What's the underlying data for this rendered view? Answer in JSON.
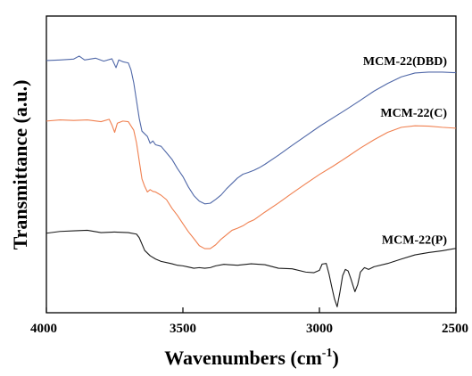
{
  "chart_data": {
    "type": "line",
    "title": "",
    "xlabel": "Wavenumbers (cm",
    "xlabel_sup": "-1",
    "xlabel_close": ")",
    "ylabel": "Transmittance (a.u.)",
    "xlim": [
      4000,
      2500
    ],
    "x_reversed": true,
    "yticks_shown": false,
    "x_ticks": [
      4000,
      3500,
      3000,
      2500
    ],
    "ylim": [
      0,
      100
    ],
    "grid": false,
    "legend": "inline labels",
    "series": [
      {
        "name": "MCM-22(DBD)",
        "color": "#5068a8",
        "points": [
          [
            4000,
            85
          ],
          [
            3950,
            85.2
          ],
          [
            3900,
            85.5
          ],
          [
            3880,
            86.5
          ],
          [
            3860,
            85.2
          ],
          [
            3820,
            85.8
          ],
          [
            3790,
            84.8
          ],
          [
            3760,
            85.6
          ],
          [
            3745,
            82.6
          ],
          [
            3735,
            85.2
          ],
          [
            3720,
            84.6
          ],
          [
            3700,
            84.2
          ],
          [
            3690,
            81.8
          ],
          [
            3680,
            77.5
          ],
          [
            3670,
            71.5
          ],
          [
            3660,
            65.5
          ],
          [
            3650,
            61.2
          ],
          [
            3640,
            60.3
          ],
          [
            3630,
            59.4
          ],
          [
            3620,
            57.1
          ],
          [
            3610,
            57.9
          ],
          [
            3600,
            56.6
          ],
          [
            3580,
            56.1
          ],
          [
            3560,
            53.9
          ],
          [
            3540,
            51.7
          ],
          [
            3520,
            48.6
          ],
          [
            3500,
            45.9
          ],
          [
            3480,
            42.4
          ],
          [
            3460,
            39.5
          ],
          [
            3440,
            37.6
          ],
          [
            3420,
            36.7
          ],
          [
            3400,
            36.9
          ],
          [
            3380,
            38.2
          ],
          [
            3360,
            39.7
          ],
          [
            3340,
            41.8
          ],
          [
            3320,
            43.6
          ],
          [
            3300,
            45.4
          ],
          [
            3280,
            46.7
          ],
          [
            3260,
            47.3
          ],
          [
            3240,
            48.0
          ],
          [
            3220,
            48.9
          ],
          [
            3200,
            50.0
          ],
          [
            3150,
            53.1
          ],
          [
            3100,
            56.4
          ],
          [
            3050,
            59.6
          ],
          [
            3000,
            62.8
          ],
          [
            2950,
            65.7
          ],
          [
            2900,
            68.6
          ],
          [
            2850,
            71.6
          ],
          [
            2800,
            74.7
          ],
          [
            2750,
            77.3
          ],
          [
            2700,
            79.5
          ],
          [
            2650,
            80.8
          ],
          [
            2600,
            81.1
          ],
          [
            2550,
            81.1
          ],
          [
            2500,
            80.9
          ]
        ]
      },
      {
        "name": "MCM-22(C)",
        "color": "#f08050",
        "points": [
          [
            4000,
            64.6
          ],
          [
            3950,
            65.0
          ],
          [
            3900,
            64.8
          ],
          [
            3850,
            65.0
          ],
          [
            3800,
            64.4
          ],
          [
            3770,
            65.2
          ],
          [
            3760,
            63.3
          ],
          [
            3750,
            60.8
          ],
          [
            3740,
            63.9
          ],
          [
            3720,
            64.6
          ],
          [
            3700,
            64.4
          ],
          [
            3680,
            61.5
          ],
          [
            3670,
            57.3
          ],
          [
            3660,
            51.2
          ],
          [
            3650,
            45.1
          ],
          [
            3640,
            42.6
          ],
          [
            3630,
            40.7
          ],
          [
            3620,
            41.5
          ],
          [
            3610,
            40.9
          ],
          [
            3600,
            40.7
          ],
          [
            3580,
            39.6
          ],
          [
            3560,
            38.1
          ],
          [
            3540,
            35.2
          ],
          [
            3520,
            32.8
          ],
          [
            3500,
            30.0
          ],
          [
            3480,
            27.3
          ],
          [
            3460,
            25.0
          ],
          [
            3440,
            22.6
          ],
          [
            3420,
            21.6
          ],
          [
            3400,
            21.6
          ],
          [
            3380,
            22.9
          ],
          [
            3360,
            24.8
          ],
          [
            3340,
            26.3
          ],
          [
            3320,
            27.8
          ],
          [
            3300,
            28.5
          ],
          [
            3280,
            29.3
          ],
          [
            3260,
            30.5
          ],
          [
            3240,
            31.3
          ],
          [
            3200,
            33.9
          ],
          [
            3150,
            37.0
          ],
          [
            3100,
            40.3
          ],
          [
            3050,
            43.5
          ],
          [
            3000,
            46.6
          ],
          [
            2950,
            49.4
          ],
          [
            2900,
            52.4
          ],
          [
            2850,
            55.5
          ],
          [
            2800,
            58.3
          ],
          [
            2750,
            60.8
          ],
          [
            2700,
            62.5
          ],
          [
            2650,
            63.0
          ],
          [
            2600,
            62.9
          ],
          [
            2550,
            62.5
          ],
          [
            2500,
            62.2
          ]
        ]
      },
      {
        "name": "MCM-22(P)",
        "color": "#1a1a1a",
        "points": [
          [
            4000,
            26.8
          ],
          [
            3950,
            27.4
          ],
          [
            3900,
            27.6
          ],
          [
            3850,
            27.8
          ],
          [
            3800,
            27.0
          ],
          [
            3750,
            27.2
          ],
          [
            3700,
            27.0
          ],
          [
            3670,
            26.5
          ],
          [
            3660,
            25.3
          ],
          [
            3640,
            21.0
          ],
          [
            3620,
            19.2
          ],
          [
            3600,
            18.1
          ],
          [
            3580,
            17.3
          ],
          [
            3560,
            16.9
          ],
          [
            3540,
            16.5
          ],
          [
            3520,
            16.0
          ],
          [
            3500,
            15.8
          ],
          [
            3480,
            15.4
          ],
          [
            3460,
            15.0
          ],
          [
            3440,
            15.2
          ],
          [
            3420,
            15.0
          ],
          [
            3400,
            15.2
          ],
          [
            3380,
            15.8
          ],
          [
            3350,
            16.3
          ],
          [
            3300,
            16.0
          ],
          [
            3250,
            16.5
          ],
          [
            3200,
            16.2
          ],
          [
            3150,
            15.0
          ],
          [
            3100,
            14.8
          ],
          [
            3050,
            13.7
          ],
          [
            3020,
            13.5
          ],
          [
            3000,
            14.3
          ],
          [
            2990,
            16.4
          ],
          [
            2975,
            16.6
          ],
          [
            2965,
            13.1
          ],
          [
            2955,
            8.8
          ],
          [
            2945,
            4.7
          ],
          [
            2935,
            2.0
          ],
          [
            2925,
            6.9
          ],
          [
            2915,
            12.5
          ],
          [
            2905,
            14.6
          ],
          [
            2895,
            14.1
          ],
          [
            2885,
            11.5
          ],
          [
            2870,
            7.1
          ],
          [
            2860,
            9.4
          ],
          [
            2850,
            13.7
          ],
          [
            2835,
            15.2
          ],
          [
            2820,
            14.6
          ],
          [
            2800,
            15.5
          ],
          [
            2750,
            16.6
          ],
          [
            2700,
            18.1
          ],
          [
            2650,
            19.5
          ],
          [
            2600,
            20.3
          ],
          [
            2550,
            20.9
          ],
          [
            2500,
            21.7
          ]
        ]
      }
    ]
  }
}
